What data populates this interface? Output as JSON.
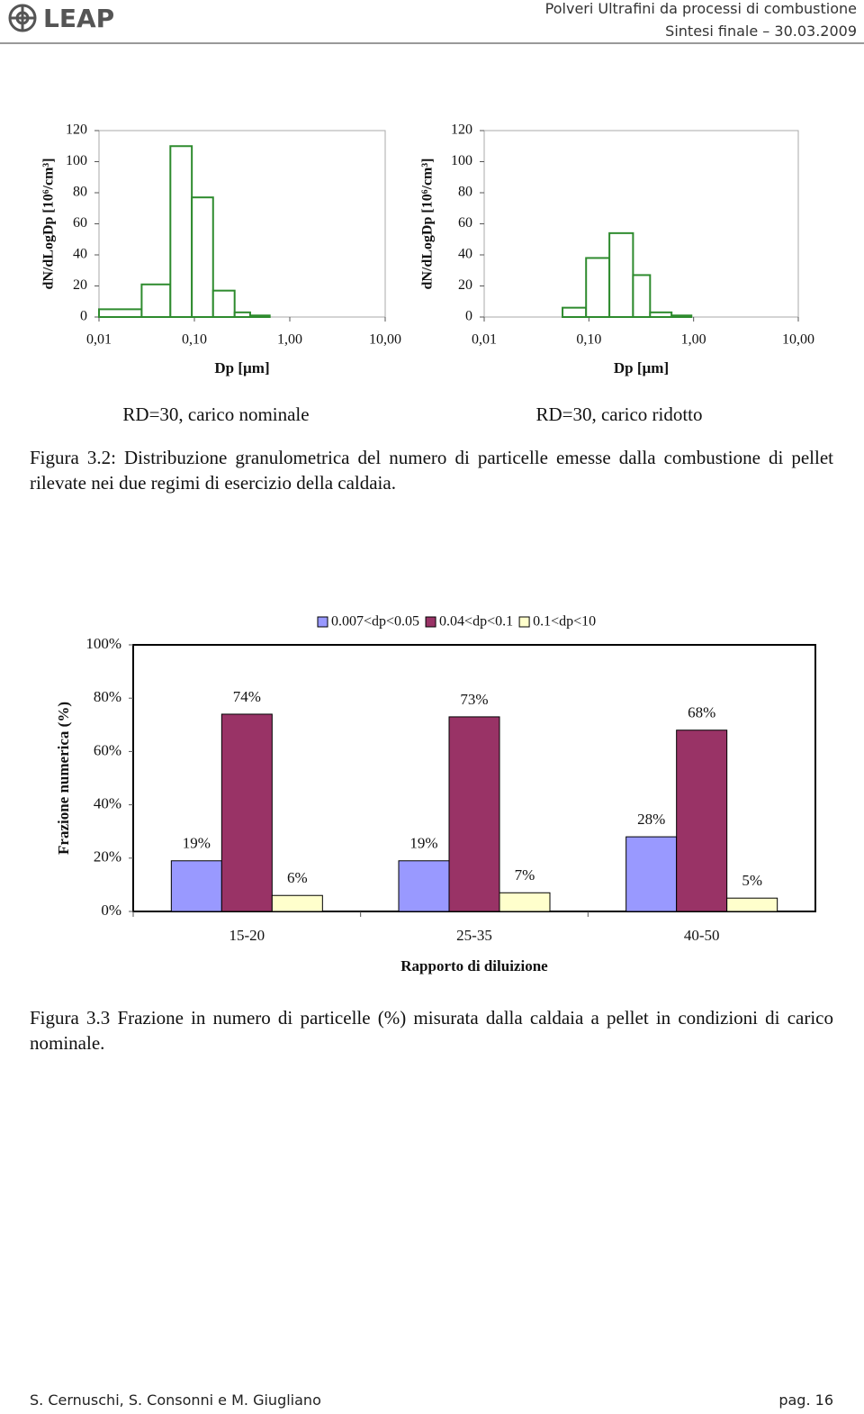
{
  "header": {
    "logo": "LEAP",
    "title": "Polveri Ultrafini da processi di combustione",
    "date": "Sintesi finale – 30.03.2009"
  },
  "chart_data": [
    {
      "type": "histogram",
      "ylabel": "dN/dLogDp [10⁶/cm³]",
      "xlabel": "Dp [µm]",
      "caption": "RD=30, carico nominale",
      "bins": [
        0.01,
        0.028,
        0.056,
        0.094,
        0.157,
        0.264,
        0.384,
        0.616,
        0.953,
        1.61,
        2.47,
        3.97,
        6.67,
        10
      ],
      "values": [
        5,
        21,
        110,
        77,
        17,
        3,
        1,
        0,
        0,
        0,
        0,
        0,
        0
      ],
      "color": "#2e8b2e",
      "xscale": "log",
      "xlim": [
        0.01,
        10
      ],
      "xticks": [
        {
          "value": 0.01,
          "label": "0,01"
        },
        {
          "value": 0.1,
          "label": "0,10"
        },
        {
          "value": 1,
          "label": "1,00"
        },
        {
          "value": 10,
          "label": "10,00"
        }
      ],
      "ylim": [
        0,
        120
      ],
      "yticks": [
        0,
        20,
        40,
        60,
        80,
        100,
        120
      ]
    },
    {
      "type": "histogram",
      "ylabel": "dN/dLogDp [10⁶/cm³]",
      "xlabel": "Dp [µm]",
      "caption": "RD=30, carico ridotto",
      "bins": [
        0.01,
        0.028,
        0.056,
        0.094,
        0.157,
        0.264,
        0.384,
        0.616,
        0.953,
        1.61,
        2.47,
        3.97,
        6.67,
        10
      ],
      "values": [
        0,
        0,
        6,
        38,
        54,
        27,
        3,
        1,
        0,
        0,
        0,
        0,
        0
      ],
      "color": "#2e8b2e",
      "xscale": "log",
      "xlim": [
        0.01,
        10
      ],
      "xticks": [
        {
          "value": 0.01,
          "label": "0,01"
        },
        {
          "value": 0.1,
          "label": "0,10"
        },
        {
          "value": 1,
          "label": "1,00"
        },
        {
          "value": 10,
          "label": "10,00"
        }
      ],
      "ylim": [
        0,
        120
      ],
      "yticks": [
        0,
        20,
        40,
        60,
        80,
        100,
        120
      ]
    },
    {
      "type": "bar",
      "ylabel": "Frazione numerica (%)",
      "xlabel": "Rapporto di diluizione",
      "categories": [
        "15-20",
        "25-35",
        "40-50"
      ],
      "series": [
        {
          "name": "0.007<dp<0.05",
          "color": "#9999ff",
          "values": [
            19,
            19,
            28
          ],
          "value_labels": [
            "19%",
            "19%",
            "28%"
          ]
        },
        {
          "name": "0.04<dp<0.1",
          "color": "#993366",
          "values": [
            74,
            73,
            68
          ],
          "value_labels": [
            "74%",
            "73%",
            "68%"
          ]
        },
        {
          "name": "0.1<dp<10",
          "color": "#ffffcc",
          "values": [
            6,
            7,
            5
          ],
          "value_labels": [
            "6%",
            "7%",
            "5%"
          ]
        }
      ],
      "ylim": [
        0,
        100
      ],
      "yticks": [
        {
          "value": 0,
          "label": "0%"
        },
        {
          "value": 20,
          "label": "20%"
        },
        {
          "value": 40,
          "label": "40%"
        },
        {
          "value": 60,
          "label": "60%"
        },
        {
          "value": 80,
          "label": "80%"
        },
        {
          "value": 100,
          "label": "100%"
        }
      ],
      "legend": "top"
    }
  ],
  "captions": [
    "Figura 3.2: Distribuzione granulometrica del numero di particelle emesse dalla combustione di pellet rilevate nei due regimi di esercizio della caldaia.",
    "Figura 3.3 Frazione in numero di particelle (%) misurata dalla caldaia a pellet in condizioni di carico nominale."
  ],
  "footer": {
    "authors": "S. Cernuschi, S. Consonni e M. Giugliano",
    "page": "pag. 16"
  }
}
